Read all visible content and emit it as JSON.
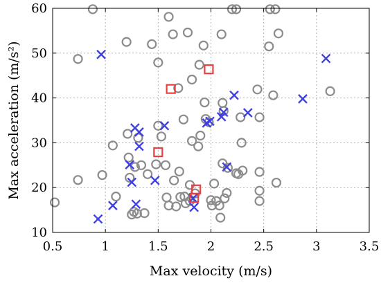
{
  "chart_data": {
    "type": "scatter",
    "xlabel": "Max velocity (m/s)",
    "ylabel": "Max acceleration (m/s²)",
    "xlim": [
      0.5,
      3.5
    ],
    "ylim": [
      10,
      60
    ],
    "xticks": [
      "0.5",
      "1",
      "1.5",
      "2",
      "2.5",
      "3",
      "3.5"
    ],
    "yticks": [
      "10",
      "20",
      "30",
      "40",
      "50",
      "60"
    ],
    "grid": true,
    "legend": "none",
    "series": [
      {
        "marker": "circle",
        "color": "#8c8c8c",
        "points": [
          [
            0.52,
            16.7
          ],
          [
            0.74,
            48.7
          ],
          [
            0.74,
            21.7
          ],
          [
            0.88,
            59.8
          ],
          [
            0.97,
            22.8
          ],
          [
            1.07,
            29.4
          ],
          [
            1.1,
            18.0
          ],
          [
            1.2,
            52.5
          ],
          [
            1.21,
            32.0
          ],
          [
            1.22,
            26.7
          ],
          [
            1.23,
            22.2
          ],
          [
            1.25,
            14.0
          ],
          [
            1.27,
            14.6
          ],
          [
            1.28,
            24.6
          ],
          [
            1.3,
            14.2
          ],
          [
            1.31,
            31.1
          ],
          [
            1.34,
            25.0
          ],
          [
            1.37,
            14.3
          ],
          [
            1.4,
            23.0
          ],
          [
            1.44,
            52.0
          ],
          [
            1.48,
            25.2
          ],
          [
            1.5,
            47.9
          ],
          [
            1.5,
            33.8
          ],
          [
            1.53,
            31.4
          ],
          [
            1.57,
            25.0
          ],
          [
            1.58,
            17.8
          ],
          [
            1.6,
            58.1
          ],
          [
            1.6,
            16.0
          ],
          [
            1.64,
            54.2
          ],
          [
            1.65,
            21.6
          ],
          [
            1.67,
            15.8
          ],
          [
            1.69,
            42.2
          ],
          [
            1.7,
            23.6
          ],
          [
            1.71,
            17.9
          ],
          [
            1.74,
            35.2
          ],
          [
            1.75,
            18.0
          ],
          [
            1.76,
            16.5
          ],
          [
            1.78,
            54.6
          ],
          [
            1.8,
            20.6
          ],
          [
            1.8,
            17.0
          ],
          [
            1.82,
            44.1
          ],
          [
            1.82,
            30.4
          ],
          [
            1.85,
            18.7
          ],
          [
            1.88,
            29.2
          ],
          [
            1.89,
            47.4
          ],
          [
            1.9,
            31.6
          ],
          [
            1.93,
            51.7
          ],
          [
            1.94,
            39.0
          ],
          [
            1.95,
            35.3
          ],
          [
            1.98,
            34.6
          ],
          [
            2.0,
            17.2
          ],
          [
            2.01,
            16.0
          ],
          [
            2.03,
            20.9
          ],
          [
            2.05,
            17.0
          ],
          [
            2.08,
            16.0
          ],
          [
            2.09,
            13.3
          ],
          [
            2.1,
            54.2
          ],
          [
            2.11,
            38.9
          ],
          [
            2.11,
            25.4
          ],
          [
            2.12,
            37.1
          ],
          [
            2.13,
            17.6
          ],
          [
            2.15,
            18.8
          ],
          [
            2.16,
            24.4
          ],
          [
            2.2,
            59.8
          ],
          [
            2.24,
            23.2
          ],
          [
            2.24,
            59.8
          ],
          [
            2.26,
            23.0
          ],
          [
            2.28,
            35.7
          ],
          [
            2.29,
            30.0
          ],
          [
            2.3,
            23.8
          ],
          [
            2.44,
            41.9
          ],
          [
            2.46,
            35.7
          ],
          [
            2.46,
            23.5
          ],
          [
            2.46,
            19.3
          ],
          [
            2.46,
            17.0
          ],
          [
            2.55,
            51.5
          ],
          [
            2.56,
            59.8
          ],
          [
            2.59,
            40.6
          ],
          [
            2.61,
            59.8
          ],
          [
            2.62,
            21.1
          ],
          [
            2.64,
            54.4
          ],
          [
            3.13,
            41.5
          ]
        ]
      },
      {
        "marker": "x",
        "color": "#4040e0",
        "points": [
          [
            0.96,
            49.7
          ],
          [
            0.93,
            13.0
          ],
          [
            1.07,
            16.0
          ],
          [
            1.23,
            25.1
          ],
          [
            1.25,
            21.2
          ],
          [
            1.28,
            33.3
          ],
          [
            1.29,
            16.3
          ],
          [
            1.32,
            32.4
          ],
          [
            1.32,
            29.2
          ],
          [
            1.47,
            21.6
          ],
          [
            1.56,
            33.8
          ],
          [
            1.83,
            17.6
          ],
          [
            1.84,
            15.6
          ],
          [
            1.96,
            34.4
          ],
          [
            1.99,
            34.8
          ],
          [
            2.1,
            35.8
          ],
          [
            2.12,
            36.8
          ],
          [
            2.15,
            24.6
          ],
          [
            2.22,
            40.6
          ],
          [
            2.35,
            36.7
          ],
          [
            2.87,
            39.8
          ],
          [
            3.09,
            48.8
          ]
        ]
      },
      {
        "marker": "square",
        "color": "#e84040",
        "points": [
          [
            1.62,
            42.0
          ],
          [
            1.98,
            46.4
          ],
          [
            1.5,
            27.9
          ],
          [
            1.86,
            19.6
          ],
          [
            1.84,
            17.7
          ]
        ]
      }
    ]
  }
}
